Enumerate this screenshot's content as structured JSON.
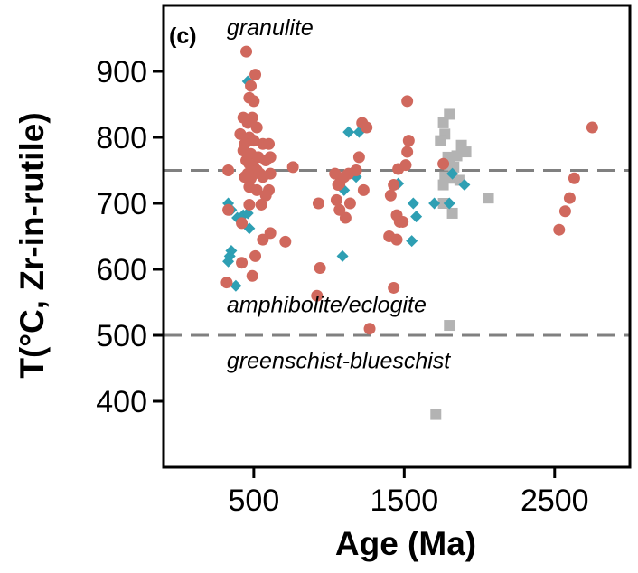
{
  "chart_data": {
    "type": "scatter",
    "panel_label": "(c)",
    "xlabel": "Age (Ma)",
    "ylabel": "T(°C, Zr-in-rutile)",
    "xlim": [
      -100,
      3000
    ],
    "ylim": [
      300,
      1000
    ],
    "xticks": [
      500,
      1500,
      2500
    ],
    "yticks": [
      400,
      500,
      600,
      700,
      800,
      900
    ],
    "grid": false,
    "legend": "none",
    "reference_lines": [
      {
        "y": 750,
        "style": "dashed",
        "color": "#808080"
      },
      {
        "y": 500,
        "style": "dashed",
        "color": "#808080"
      }
    ],
    "annotations": [
      {
        "text": "granulite",
        "x": 320,
        "y": 955
      },
      {
        "text": "amphibolite/eclogite",
        "x": 320,
        "y": 535
      },
      {
        "text": "greenschist-blueschist",
        "x": 320,
        "y": 450
      }
    ],
    "series": [
      {
        "marker": "circle",
        "color": "#d0685d",
        "points": [
          [
            450,
            930
          ],
          [
            510,
            895
          ],
          [
            480,
            878
          ],
          [
            470,
            860
          ],
          [
            500,
            855
          ],
          [
            490,
            830
          ],
          [
            430,
            830
          ],
          [
            460,
            822
          ],
          [
            520,
            815
          ],
          [
            410,
            805
          ],
          [
            470,
            800
          ],
          [
            500,
            795
          ],
          [
            440,
            790
          ],
          [
            560,
            790
          ],
          [
            600,
            790
          ],
          [
            430,
            780
          ],
          [
            480,
            775
          ],
          [
            530,
            770
          ],
          [
            450,
            765
          ],
          [
            580,
            765
          ],
          [
            610,
            770
          ],
          [
            470,
            760
          ],
          [
            500,
            755
          ],
          [
            520,
            750
          ],
          [
            460,
            745
          ],
          [
            540,
            745
          ],
          [
            610,
            745
          ],
          [
            330,
            750
          ],
          [
            440,
            740
          ],
          [
            480,
            738
          ],
          [
            560,
            740
          ],
          [
            470,
            725
          ],
          [
            520,
            720
          ],
          [
            600,
            720
          ],
          [
            580,
            712
          ],
          [
            470,
            698
          ],
          [
            550,
            698
          ],
          [
            330,
            690
          ],
          [
            420,
            670
          ],
          [
            610,
            655
          ],
          [
            560,
            645
          ],
          [
            510,
            620
          ],
          [
            420,
            610
          ],
          [
            490,
            590
          ],
          [
            320,
            580
          ],
          [
            760,
            755
          ],
          [
            710,
            642
          ],
          [
            930,
            700
          ],
          [
            940,
            602
          ],
          [
            920,
            560
          ],
          [
            1040,
            745
          ],
          [
            1070,
            730
          ],
          [
            1060,
            728
          ],
          [
            1100,
            740
          ],
          [
            1130,
            745
          ],
          [
            1050,
            705
          ],
          [
            1070,
            690
          ],
          [
            1140,
            700
          ],
          [
            1110,
            678
          ],
          [
            1200,
            770
          ],
          [
            1180,
            750
          ],
          [
            1220,
            822
          ],
          [
            1250,
            815
          ],
          [
            1230,
            720
          ],
          [
            1270,
            510
          ],
          [
            1400,
            650
          ],
          [
            1410,
            712
          ],
          [
            1430,
            728
          ],
          [
            1460,
            752
          ],
          [
            1450,
            682
          ],
          [
            1470,
            672
          ],
          [
            1490,
            672
          ],
          [
            1450,
            645
          ],
          [
            1430,
            572
          ],
          [
            1520,
            855
          ],
          [
            1530,
            795
          ],
          [
            1520,
            778
          ],
          [
            1510,
            758
          ],
          [
            1760,
            760
          ],
          [
            2530,
            660
          ],
          [
            2570,
            688
          ],
          [
            2600,
            708
          ],
          [
            2630,
            738
          ],
          [
            2750,
            815
          ]
        ]
      },
      {
        "marker": "diamond",
        "color": "#2e9fb3",
        "points": [
          [
            460,
            885
          ],
          [
            330,
            700
          ],
          [
            350,
            690
          ],
          [
            350,
            628
          ],
          [
            340,
            620
          ],
          [
            330,
            612
          ],
          [
            390,
            678
          ],
          [
            430,
            682
          ],
          [
            460,
            685
          ],
          [
            470,
            662
          ],
          [
            380,
            575
          ],
          [
            1130,
            808
          ],
          [
            1100,
            720
          ],
          [
            1090,
            620
          ],
          [
            1200,
            808
          ],
          [
            1180,
            740
          ],
          [
            1460,
            730
          ],
          [
            1560,
            700
          ],
          [
            1580,
            680
          ],
          [
            1550,
            643
          ],
          [
            1700,
            700
          ],
          [
            1800,
            700
          ],
          [
            1820,
            745
          ],
          [
            1900,
            728
          ]
        ]
      },
      {
        "marker": "square",
        "color": "#b3b3b3",
        "points": [
          [
            1800,
            835
          ],
          [
            1760,
            822
          ],
          [
            1770,
            805
          ],
          [
            1740,
            795
          ],
          [
            1880,
            788
          ],
          [
            1910,
            778
          ],
          [
            1850,
            772
          ],
          [
            1790,
            770
          ],
          [
            1800,
            758
          ],
          [
            1830,
            755
          ],
          [
            1770,
            740
          ],
          [
            1820,
            738
          ],
          [
            1870,
            735
          ],
          [
            1760,
            728
          ],
          [
            1760,
            700
          ],
          [
            1820,
            685
          ],
          [
            2060,
            708
          ],
          [
            1800,
            515
          ],
          [
            1710,
            380
          ]
        ]
      }
    ]
  }
}
